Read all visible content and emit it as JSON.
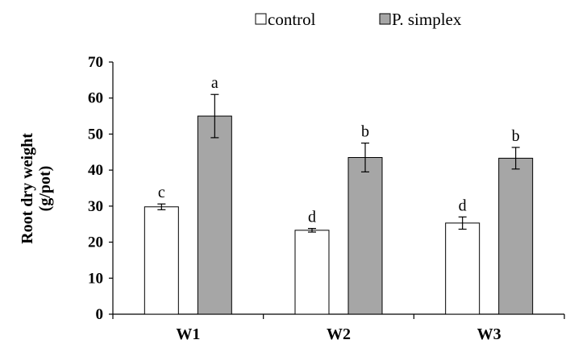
{
  "chart_data": {
    "type": "bar",
    "categories": [
      "W1",
      "W2",
      "W3"
    ],
    "series": [
      {
        "name": "control",
        "color": "#ffffff",
        "values": [
          29.8,
          23.3,
          25.3
        ],
        "errors": [
          0.8,
          0.5,
          1.7
        ],
        "labels": [
          "c",
          "d",
          "d"
        ]
      },
      {
        "name": "P. simplex",
        "color": "#a6a6a6",
        "values": [
          55.0,
          43.5,
          43.3
        ],
        "errors": [
          6.0,
          4.0,
          3.0
        ],
        "labels": [
          "a",
          "b",
          "b"
        ]
      }
    ],
    "ylabel_line1": "Root dry weight",
    "ylabel_line2": "(g/pot)",
    "ylim": [
      0,
      70
    ],
    "yticks": [
      "0",
      "10",
      "20",
      "30",
      "40",
      "50",
      "60",
      "70"
    ],
    "legend_position": "top-center",
    "grid": false
  }
}
